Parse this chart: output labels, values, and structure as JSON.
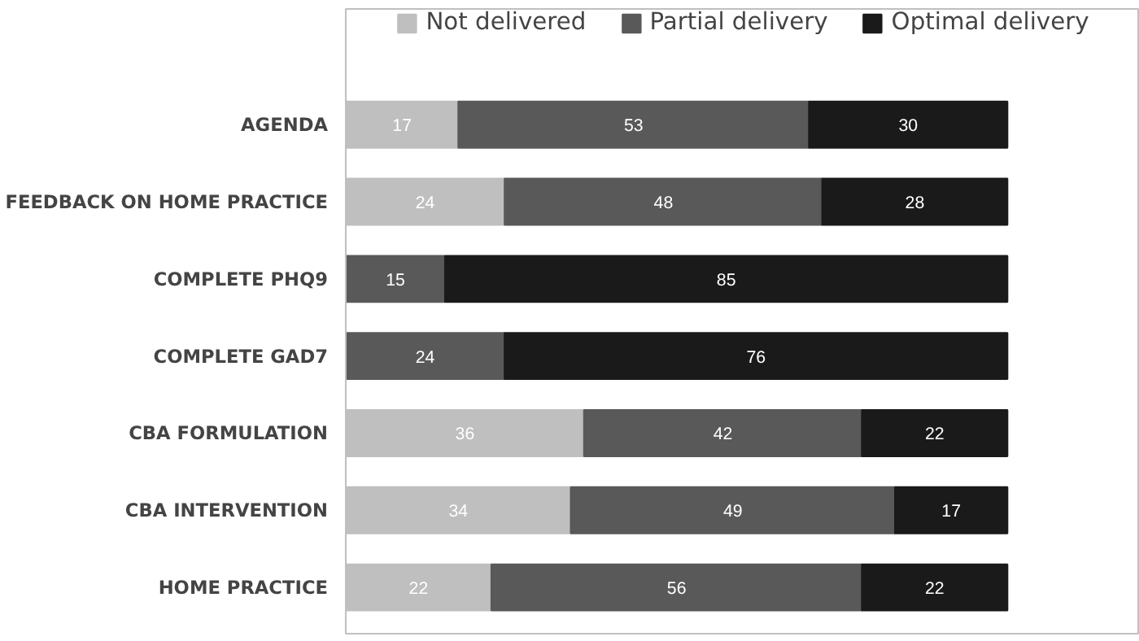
{
  "chart_data": {
    "type": "bar",
    "orientation": "horizontal",
    "stacked": true,
    "data_labels": true,
    "legend": "top",
    "grid": false,
    "categories": [
      "AGENDA",
      "FEEDBACK ON HOME PRACTICE",
      "COMPLETE PHQ9",
      "COMPLETE GAD7",
      "CBA FORMULATION",
      "CBA INTERVENTION",
      "HOME PRACTICE"
    ],
    "series": [
      {
        "name": "Not delivered",
        "color": "#bfbfbf",
        "values": [
          17,
          24,
          null,
          null,
          36,
          34,
          22
        ]
      },
      {
        "name": "Partial delivery",
        "color": "#595959",
        "values": [
          53,
          48,
          15,
          24,
          42,
          49,
          56
        ]
      },
      {
        "name": "Optimal delivery",
        "color": "#1a1a1a",
        "values": [
          30,
          28,
          85,
          76,
          22,
          17,
          22
        ]
      }
    ]
  }
}
